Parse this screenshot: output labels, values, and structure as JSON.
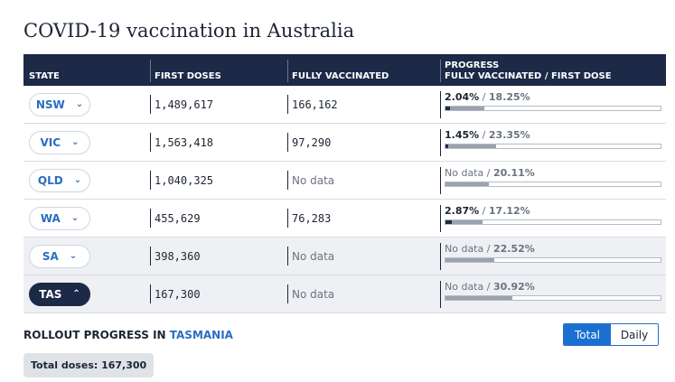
{
  "title": "COVID-19 vaccination in Australia",
  "table": {
    "headers": {
      "state": "STATE",
      "first_doses": "FIRST DOSES",
      "fully_vaccinated": "FULLY VACCINATED",
      "progress_line1": "PROGRESS",
      "progress_line2": "FULLY VACCINATED / FIRST DOSE"
    },
    "rows": [
      {
        "state": "NSW",
        "first_doses": "1,489,617",
        "fully_vaccinated": "166,162",
        "full_pct_text": "2.04%",
        "first_pct_text": "18.25%",
        "full_pct": 2.04,
        "first_pct": 18.25,
        "expanded": false
      },
      {
        "state": "VIC",
        "first_doses": "1,563,418",
        "fully_vaccinated": "97,290",
        "full_pct_text": "1.45%",
        "first_pct_text": "23.35%",
        "full_pct": 1.45,
        "first_pct": 23.35,
        "expanded": false
      },
      {
        "state": "QLD",
        "first_doses": "1,040,325",
        "fully_vaccinated": "No data",
        "full_pct_text": "No data",
        "first_pct_text": "20.11%",
        "full_pct": null,
        "first_pct": 20.11,
        "expanded": false
      },
      {
        "state": "WA",
        "first_doses": "455,629",
        "fully_vaccinated": "76,283",
        "full_pct_text": "2.87%",
        "first_pct_text": "17.12%",
        "full_pct": 2.87,
        "first_pct": 17.12,
        "expanded": false
      },
      {
        "state": "SA",
        "first_doses": "398,360",
        "fully_vaccinated": "No data",
        "full_pct_text": "No data",
        "first_pct_text": "22.52%",
        "full_pct": null,
        "first_pct": 22.52,
        "expanded": false
      },
      {
        "state": "TAS",
        "first_doses": "167,300",
        "fully_vaccinated": "No data",
        "full_pct_text": "No data",
        "first_pct_text": "30.92%",
        "full_pct": null,
        "first_pct": 30.92,
        "expanded": true
      }
    ],
    "separator": "/",
    "icons": {
      "collapsed": "chevron-down-icon",
      "expanded": "chevron-up-icon"
    }
  },
  "rollout": {
    "label": "ROLLOUT PROGRESS IN",
    "state": "TASMANIA"
  },
  "toggle": {
    "total": "Total",
    "daily": "Daily",
    "selected": "Total"
  },
  "total_doses": "Total doses: 167,300",
  "colors": {
    "header_bg": "#1c2a48",
    "accent": "#2a6dc0",
    "toggle_active": "#1a6fd1",
    "bar_first": "#9aa2ad",
    "bar_full": "#1c2a48"
  }
}
